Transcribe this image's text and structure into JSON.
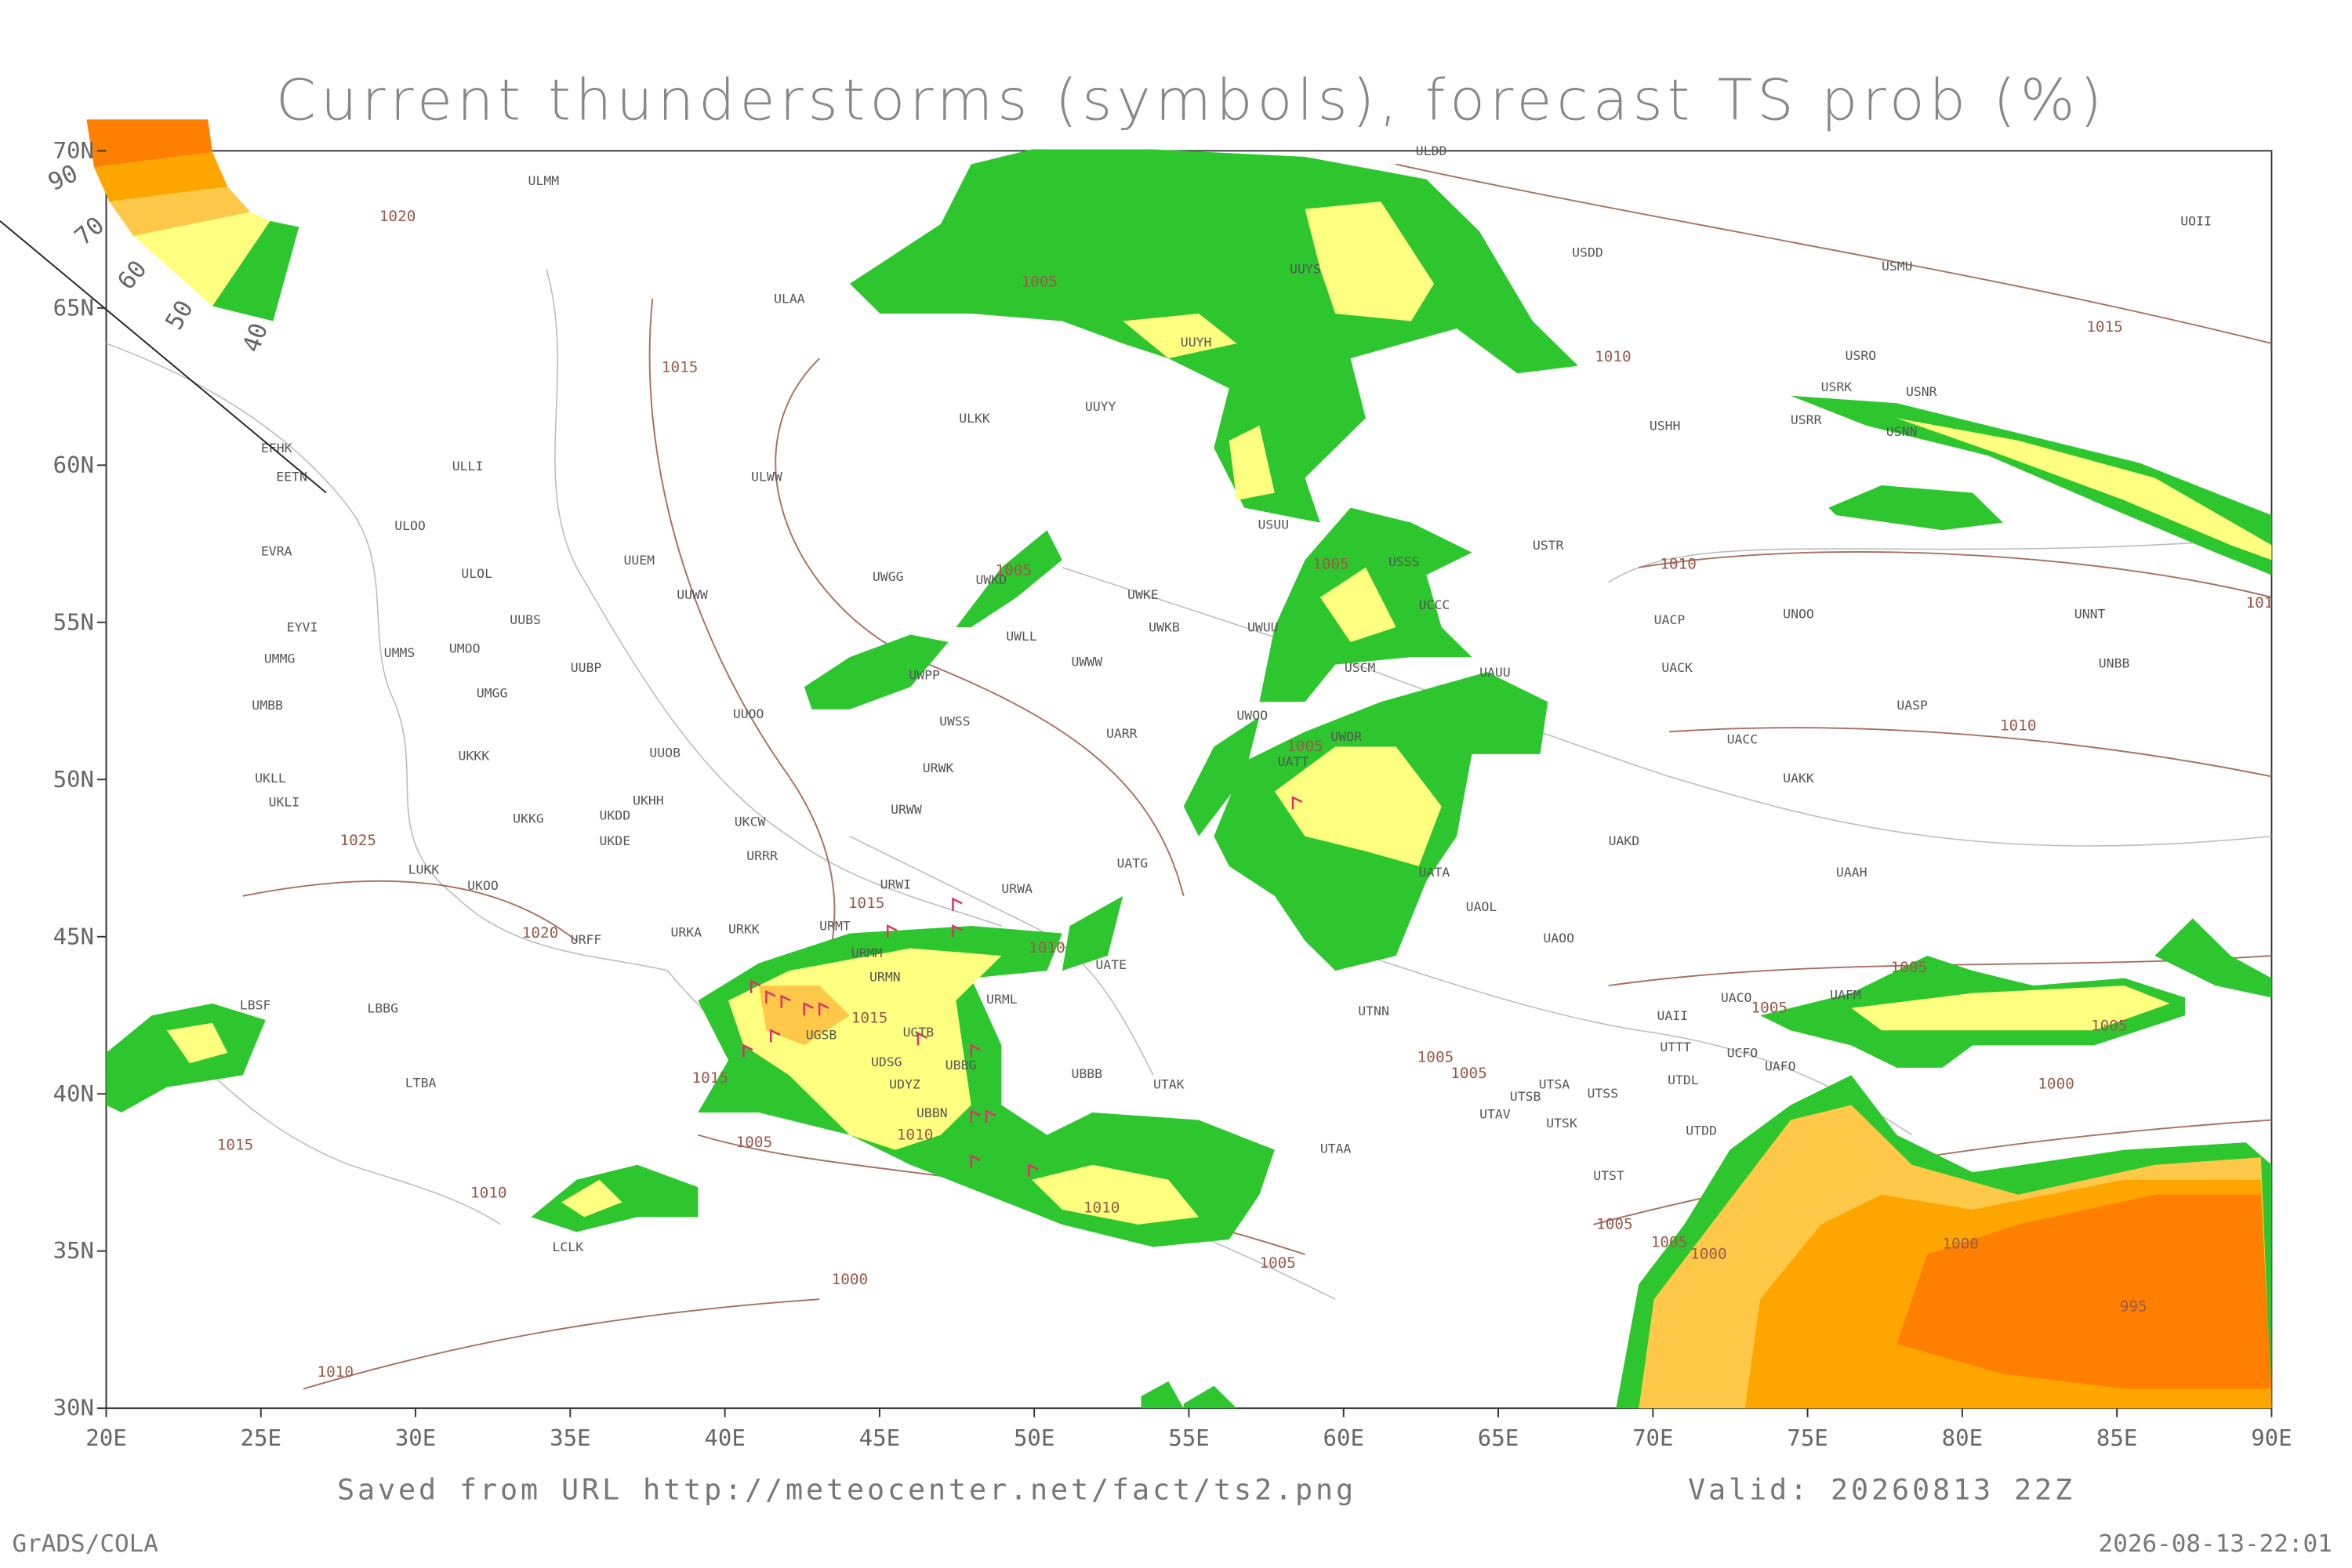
{
  "title": "Current thunderstorms (symbols), forecast TS prob (%)",
  "legend_labels": [
    "90",
    "70",
    "60",
    "50",
    "40"
  ],
  "lon_labels": [
    "20E",
    "25E",
    "30E",
    "35E",
    "40E",
    "45E",
    "50E",
    "55E",
    "60E",
    "65E",
    "70E",
    "75E",
    "80E",
    "85E",
    "90E"
  ],
  "lat_labels": [
    "30N",
    "35N",
    "40N",
    "45N",
    "50N",
    "55N",
    "60N",
    "65N",
    "70N"
  ],
  "stations": [
    "ULDD",
    "ULMM",
    "UOII",
    "USDD",
    "UUYS",
    "USMU",
    "ULAA",
    "UUYH",
    "USRO",
    "USRK",
    "USNR",
    "UUYY",
    "ULKK",
    "USRR",
    "USHH",
    "USNN",
    "EFHK",
    "EETN",
    "ULLI",
    "ULWW",
    "ULOO",
    "USTR",
    "EVRA",
    "ULOL",
    "UUEM",
    "UWGG",
    "UWKD",
    "UWKE",
    "UUWW",
    "UUBS",
    "UWKB",
    "UWUU",
    "UACP",
    "UNOO",
    "UNNT",
    "EYVI",
    "UWLL",
    "UMMS",
    "UMOO",
    "UMMG",
    "UWWW",
    "UUBP",
    "UACK",
    "UNBB",
    "UWPP",
    "UMGG",
    "UMBB",
    "UUOO",
    "UASP",
    "UWSS",
    "UARR",
    "UACC",
    "UUOB",
    "UKKK",
    "UAKK",
    "URWK",
    "UKLL",
    "UKLI",
    "UKHH",
    "URWW",
    "UKCW",
    "UKKG",
    "UKDD",
    "UKDE",
    "UAKD",
    "URRR",
    "LUKK",
    "UATG",
    "UAAH",
    "UKOO",
    "URWI",
    "URWA",
    "UAOL",
    "URMT",
    "URKK",
    "URKA",
    "URFF",
    "UAOO",
    "URMM",
    "UATE",
    "URMN",
    "URML",
    "LBSF",
    "LBBG",
    "UAII",
    "UACO",
    "UAFM",
    "UGSB",
    "UGTB",
    "UDSG",
    "UBBG",
    "UTTT",
    "UTDL",
    "UAFO",
    "UCFO",
    "LTBA",
    "UDYZ",
    "UBBB",
    "UTAK",
    "UTSA",
    "UTSB",
    "UTSS",
    "UTAV",
    "UTSK",
    "UBBN",
    "UTDD",
    "UTAA",
    "UTST",
    "LCLK",
    "UTNN",
    "UWOO",
    "UWOR",
    "UATT",
    "UATA",
    "UAUU",
    "USCM",
    "USSS",
    "UCCC",
    "USUU"
  ],
  "isobar_labels": [
    "1020",
    "1015",
    "1005",
    "1010",
    "1015",
    "1005",
    "1005",
    "1010",
    "101",
    "1005",
    "1010",
    "1025",
    "1020",
    "1015",
    "1010",
    "1015",
    "1015",
    "1005",
    "1005",
    "1005",
    "1005",
    "1005",
    "1000",
    "1010",
    "1005",
    "1015",
    "1010",
    "1010",
    "1005",
    "1005",
    "1000",
    "1000",
    "1005",
    "1000",
    "995",
    "1010"
  ],
  "footer": {
    "source": "Saved from URL http://meteocenter.net/fact/ts2.png",
    "valid": "Valid: 20260813 22Z",
    "software": "GrADS/COLA",
    "timestamp": "2026-08-13-22:01"
  }
}
